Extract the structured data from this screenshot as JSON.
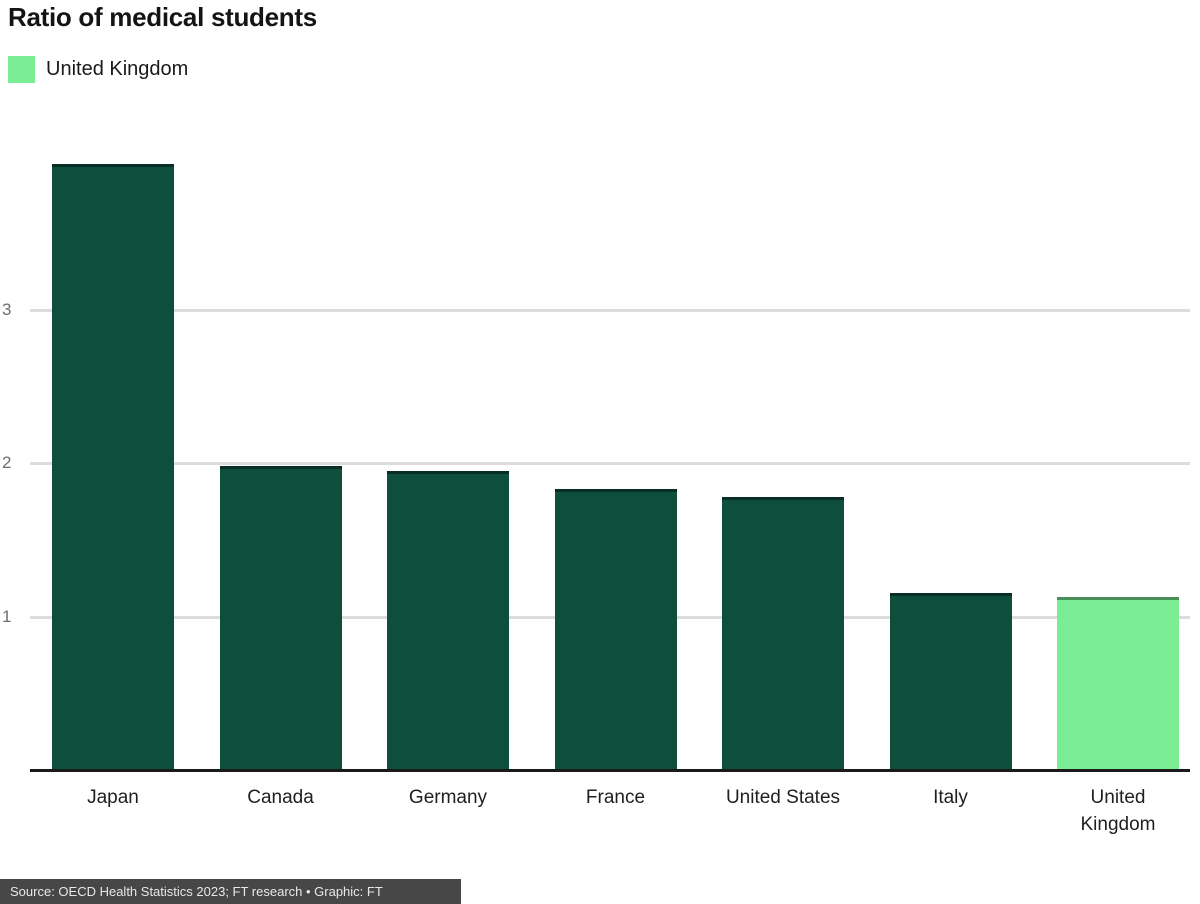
{
  "chart_data": {
    "type": "bar",
    "title": "Ratio of medical students",
    "categories": [
      "Japan",
      "Canada",
      "Germany",
      "France",
      "United States",
      "Italy",
      "United Kingdom"
    ],
    "category_lines": [
      [
        "Japan"
      ],
      [
        "Canada"
      ],
      [
        "Germany"
      ],
      [
        "France"
      ],
      [
        "United States"
      ],
      [
        "Italy"
      ],
      [
        "United",
        "Kingdom"
      ]
    ],
    "values": [
      3.95,
      1.98,
      1.95,
      1.83,
      1.78,
      1.15,
      1.13
    ],
    "highlight_index": 6,
    "yticks": [
      1,
      2,
      3
    ],
    "ylim": [
      0,
      4.1
    ],
    "grid": true,
    "legend_position": "top-left",
    "xlabel": "",
    "ylabel": ""
  },
  "legend": {
    "label": "United Kingdom",
    "swatch_color": "#7BEE95"
  },
  "source": {
    "text": "Source: OECD Health Statistics 2023; FT research • Graphic: FT"
  },
  "colors": {
    "background": "#FFFFFF",
    "bar": "#0D4E3C",
    "highlight": "#7BEE95",
    "gridline": "#DCDCDC",
    "axis": "#1A1A1A",
    "title_text": "#141414",
    "tick_text": "#6F6F6F",
    "label_text": "#1F1F1F",
    "source_bg": "#474747",
    "source_text": "#E8E8E8"
  }
}
